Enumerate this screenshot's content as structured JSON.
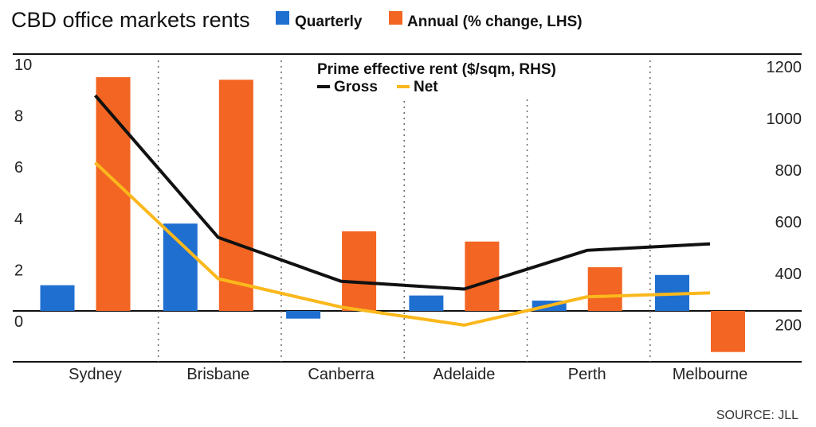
{
  "title": "CBD office markets rents",
  "legend": {
    "quarterly": "Quarterly",
    "annual": "Annual (% change, LHS)",
    "rent_title": "Prime effective rent ($/sqm, RHS)",
    "gross": "Gross",
    "net": "Net"
  },
  "source": "SOURCE: JLL",
  "colors": {
    "quarterly": "#1f6fd1",
    "annual": "#f26522",
    "gross": "#111111",
    "net": "#fbb81c",
    "axis": "#111111",
    "grid": "#666666"
  },
  "chart_data": {
    "type": "bar",
    "title": "CBD office markets rents",
    "categories": [
      "Sydney",
      "Brisbane",
      "Canberra",
      "Adelaide",
      "Perth",
      "Melbourne"
    ],
    "series": [
      {
        "name": "Quarterly",
        "axis": "left",
        "type": "bar",
        "values": [
          1.0,
          3.4,
          -0.3,
          0.6,
          0.4,
          1.4
        ]
      },
      {
        "name": "Annual (% change, LHS)",
        "axis": "left",
        "type": "bar",
        "values": [
          9.1,
          9.0,
          3.1,
          2.7,
          1.7,
          -1.6
        ]
      },
      {
        "name": "Gross",
        "axis": "right",
        "type": "line",
        "values": [
          1080,
          530,
          360,
          330,
          480,
          505
        ]
      },
      {
        "name": "Net",
        "axis": "right",
        "type": "line",
        "values": [
          820,
          370,
          260,
          190,
          300,
          315
        ]
      }
    ],
    "left_axis": {
      "ylim": [
        -2,
        10
      ],
      "ticks": [
        "0",
        "2",
        "4",
        "6",
        "8",
        "10"
      ]
    },
    "right_axis": {
      "label": "Prime effective rent ($/sqm, RHS)",
      "ylim": [
        80,
        1200
      ],
      "ticks": [
        "200",
        "400",
        "600",
        "800",
        "1000",
        "1200"
      ]
    },
    "grid": "vertical-dotted"
  }
}
